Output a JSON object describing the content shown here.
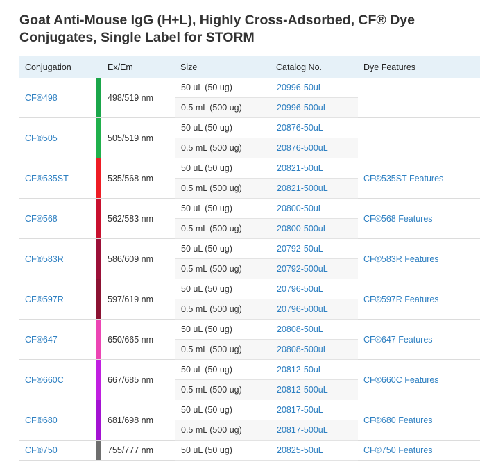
{
  "title": "Goat Anti-Mouse IgG (H+L), Highly Cross-Adsorbed, CF® Dye Conjugates, Single Label for STORM",
  "table": {
    "headers": {
      "conjugation": "Conjugation",
      "exem": "Ex/Em",
      "size": "Size",
      "catalog": "Catalog No.",
      "features": "Dye Features"
    },
    "rows": [
      {
        "conjugation": "CF®498",
        "exem": "498/519 nm",
        "color": "#1aa64a",
        "features": "",
        "items": [
          {
            "size": "50 uL (50 ug)",
            "catalog": "20996-50uL"
          },
          {
            "size": "0.5 mL (500 ug)",
            "catalog": "20996-500uL"
          }
        ]
      },
      {
        "conjugation": "CF®505",
        "exem": "505/519 nm",
        "color": "#20b04c",
        "features": "",
        "items": [
          {
            "size": "50 uL (50 ug)",
            "catalog": "20876-50uL"
          },
          {
            "size": "0.5 mL (500 ug)",
            "catalog": "20876-500uL"
          }
        ]
      },
      {
        "conjugation": "CF®535ST",
        "exem": "535/568 nm",
        "color": "#ee1c24",
        "features": "CF®535ST Features",
        "items": [
          {
            "size": "50 uL (50 ug)",
            "catalog": "20821-50uL"
          },
          {
            "size": "0.5 mL (500 ug)",
            "catalog": "20821-500uL"
          }
        ]
      },
      {
        "conjugation": "CF®568",
        "exem": "562/583 nm",
        "color": "#c8102e",
        "features": "CF®568 Features",
        "items": [
          {
            "size": "50 uL (50 ug)",
            "catalog": "20800-50uL"
          },
          {
            "size": "0.5 mL (500 ug)",
            "catalog": "20800-500uL"
          }
        ]
      },
      {
        "conjugation": "CF®583R",
        "exem": "586/609 nm",
        "color": "#9b1038",
        "features": "CF®583R Features",
        "items": [
          {
            "size": "50 uL (50 ug)",
            "catalog": "20792-50uL"
          },
          {
            "size": "0.5 mL (500 ug)",
            "catalog": "20792-500uL"
          }
        ]
      },
      {
        "conjugation": "CF®597R",
        "exem": "597/619 nm",
        "color": "#8b1232",
        "features": "CF®597R Features",
        "items": [
          {
            "size": "50 uL (50 ug)",
            "catalog": "20796-50uL"
          },
          {
            "size": "0.5 mL (500 ug)",
            "catalog": "20796-500uL"
          }
        ]
      },
      {
        "conjugation": "CF®647",
        "exem": "650/665 nm",
        "color": "#ec45b4",
        "features": "CF®647 Features",
        "items": [
          {
            "size": "50 uL (50 ug)",
            "catalog": "20808-50uL"
          },
          {
            "size": "0.5 mL (500 ug)",
            "catalog": "20808-500uL"
          }
        ]
      },
      {
        "conjugation": "CF®660C",
        "exem": "667/685 nm",
        "color": "#c01fe0",
        "features": "CF®660C Features",
        "items": [
          {
            "size": "50 uL (50 ug)",
            "catalog": "20812-50uL"
          },
          {
            "size": "0.5 mL (500 ug)",
            "catalog": "20812-500uL"
          }
        ]
      },
      {
        "conjugation": "CF®680",
        "exem": "681/698 nm",
        "color": "#a312d2",
        "features": "CF®680 Features",
        "items": [
          {
            "size": "50 uL (50 ug)",
            "catalog": "20817-50uL"
          },
          {
            "size": "0.5 mL (500 ug)",
            "catalog": "20817-500uL"
          }
        ]
      },
      {
        "conjugation": "CF®750",
        "exem": "755/777 nm",
        "color": "#6e6e6e",
        "features": "CF®750 Features",
        "items": [
          {
            "size": "50 uL (50 ug)",
            "catalog": "20825-50uL"
          }
        ]
      }
    ]
  }
}
